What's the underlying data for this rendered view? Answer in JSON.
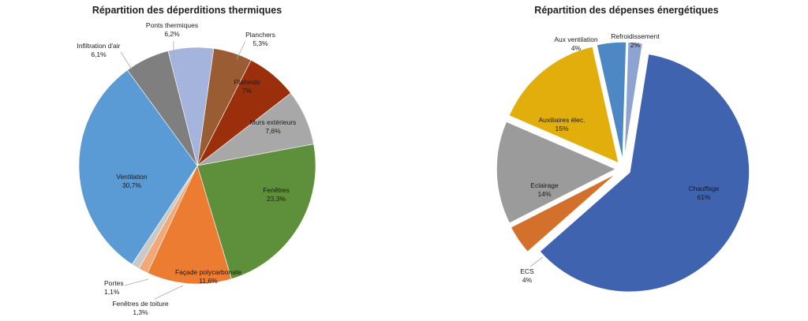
{
  "chart_data": [
    {
      "type": "pie",
      "title": "Répartition des déperditions thermiques",
      "slices": [
        {
          "label": "Planchers",
          "value_label": "5,3%",
          "value": 5.3,
          "color": "#9a5d33"
        },
        {
          "label": "Plafonds",
          "value_label": "7%",
          "value": 7.0,
          "color": "#9c2f0b"
        },
        {
          "label": "Murs extérieurs",
          "value_label": "7,6%",
          "value": 7.6,
          "color": "#a8a8a8"
        },
        {
          "label": "Fenêtres",
          "value_label": "23,3%",
          "value": 23.3,
          "color": "#5e8f3a"
        },
        {
          "label": "Façade polycarbonate",
          "value_label": "11,6%",
          "value": 11.6,
          "color": "#ec7c32"
        },
        {
          "label": "Fenêtres de toiture",
          "value_label": "1,3%",
          "value": 1.3,
          "color": "#f2a878"
        },
        {
          "label": "Portes",
          "value_label": "1,1%",
          "value": 1.1,
          "color": "#c9c9c9"
        },
        {
          "label": "Ventilation",
          "value_label": "30,7%",
          "value": 30.7,
          "color": "#5b9bd5"
        },
        {
          "label": "Infiltration d'air",
          "value_label": "6,1%",
          "value": 6.1,
          "color": "#7f7f7f"
        },
        {
          "label": "Ponts thermiques",
          "value_label": "6,2%",
          "value": 6.2,
          "color": "#a5b4dc"
        }
      ]
    },
    {
      "type": "pie",
      "title": "Répartition des dépenses énergétiques",
      "exploded": true,
      "slices": [
        {
          "label": "Chauffage",
          "value_label": "61%",
          "value": 61,
          "color": "#3f63ae"
        },
        {
          "label": "ECS",
          "value_label": "4%",
          "value": 4,
          "color": "#d2702c"
        },
        {
          "label": "Eclairage",
          "value_label": "14%",
          "value": 14,
          "color": "#9b9b9b"
        },
        {
          "label": "Auxiliaires élec.",
          "value_label": "15%",
          "value": 15,
          "color": "#e1ae0b"
        },
        {
          "label": "Aux ventilation",
          "value_label": "4%",
          "value": 4,
          "color": "#4d88c4"
        },
        {
          "label": "Refroidissement",
          "value_label": "2%",
          "value": 2,
          "color": "#8fa3d3"
        }
      ]
    }
  ]
}
